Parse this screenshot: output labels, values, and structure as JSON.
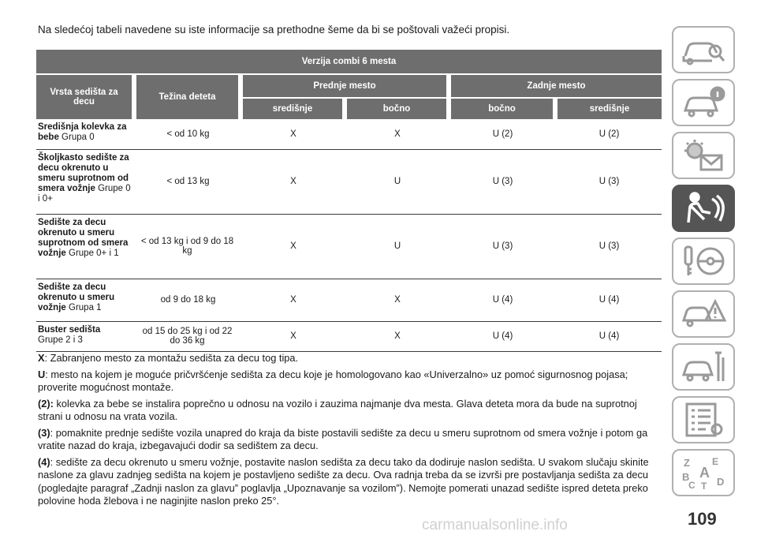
{
  "intro": "Na sledećoj tabeli navedene su iste informacije sa prethodne šeme da bi se poštovali važeći propisi.",
  "table": {
    "title": "Verzija combi 6 mesta",
    "col_seat_type": "Vrsta sedišta za decu",
    "col_weight": "Težina deteta",
    "group_front": "Prednje mesto",
    "group_rear": "Zadnje mesto",
    "sub_front_center": "središnje",
    "sub_front_side": "bočno",
    "sub_rear_side": "bočno",
    "sub_rear_center": "središnje",
    "rows": [
      {
        "name": "Središnja kolevka za bebe",
        "group": "Grupa 0",
        "weight": "< od 10 kg",
        "fc": "X",
        "fs": "X",
        "rs": "U (2)",
        "rc": "U (2)"
      },
      {
        "name": "Školjkasto sedište za decu okrenuto u smeru suprotnom od smera vožnje",
        "group": "Grupe 0 i 0+",
        "weight": "< od 13 kg",
        "fc": "X",
        "fs": "U",
        "rs": "U (3)",
        "rc": "U (3)"
      },
      {
        "name": "Sedište za decu okrenuto u smeru suprotnom od smera vožnje",
        "group": "Grupe 0+ i 1",
        "weight": "< od 13 kg i od 9 do 18 kg",
        "fc": "X",
        "fs": "U",
        "rs": "U (3)",
        "rc": "U (3)"
      },
      {
        "name": "Sedište za decu okrenuto u smeru vožnje",
        "group": "Grupa 1",
        "weight": "od 9 do 18 kg",
        "fc": "X",
        "fs": "X",
        "rs": "U (4)",
        "rc": "U (4)"
      },
      {
        "name": "Buster sedišta",
        "group": "Grupe 2 i 3",
        "weight": "od 15 do 25 kg i od 22 do 36 kg",
        "fc": "X",
        "fs": "X",
        "rs": "U (4)",
        "rc": "U (4)"
      }
    ]
  },
  "notes": [
    {
      "key": "X",
      "text": ": Zabranjeno mesto za montažu sedišta za decu tog tipa."
    },
    {
      "key": "U",
      "text": ": mesto na kojem je moguće pričvršćenje sedišta za decu koje je homologovano kao «Univerzalno» uz pomoć sigurnosnog pojasa; proverite mogućnost montaže."
    },
    {
      "key": "(2):",
      "text": " kolevka za bebe se instalira poprečno u odnosu na vozilo i zauzima najmanje dva mesta. Glava deteta mora da bude na suprotnoj strani u odnosu na vrata vozila."
    },
    {
      "key": "(3)",
      "text": ": pomaknite prednje sedište vozila unapred do kraja da biste postavili sedište za decu u smeru suprotnom od smera vožnje i potom ga vratite nazad do kraja, izbegavajući dodir sa sedištem za decu."
    },
    {
      "key": "(4)",
      "text": ": sedište za decu okrenuto u smeru vožnje, postavite naslon sedišta za decu tako da dodiruje naslon sedišta. U svakom slučaju skinite naslone za glavu zadnjeg sedišta na kojem je postavljeno sedište za decu. Ova radnja treba da se izvrši pre postavljanja sedišta za decu (pogledajte paragraf „Zadnji naslon za glavu” poglavlja „Upoznavanje sa vozilom”). Nemojte pomerati unazad sedište ispred deteta preko polovine hoda žlebova i ne naginjite naslon preko 25°."
    }
  ],
  "sidebar": {
    "tabs": [
      {
        "icon": "car-search-icon",
        "active": false
      },
      {
        "icon": "car-info-icon",
        "active": false
      },
      {
        "icon": "warning-light-envelope-icon",
        "active": false
      },
      {
        "icon": "seatbelt-airbag-icon",
        "active": true
      },
      {
        "icon": "key-steering-wheel-icon",
        "active": false
      },
      {
        "icon": "car-crash-warning-icon",
        "active": false
      },
      {
        "icon": "car-maintenance-tools-icon",
        "active": false
      },
      {
        "icon": "specifications-list-icon",
        "active": false
      },
      {
        "icon": "alphabetical-index-icon",
        "active": false
      }
    ],
    "index_letters": [
      "Z",
      "E",
      "A",
      "B",
      "C",
      "T",
      "D"
    ]
  },
  "page_number": "109",
  "watermark": "carmanualsonline.info",
  "colors": {
    "header_bg": "#6e6e6e",
    "active_tab": "#555555",
    "icon_stroke": "#9a9a9a"
  }
}
